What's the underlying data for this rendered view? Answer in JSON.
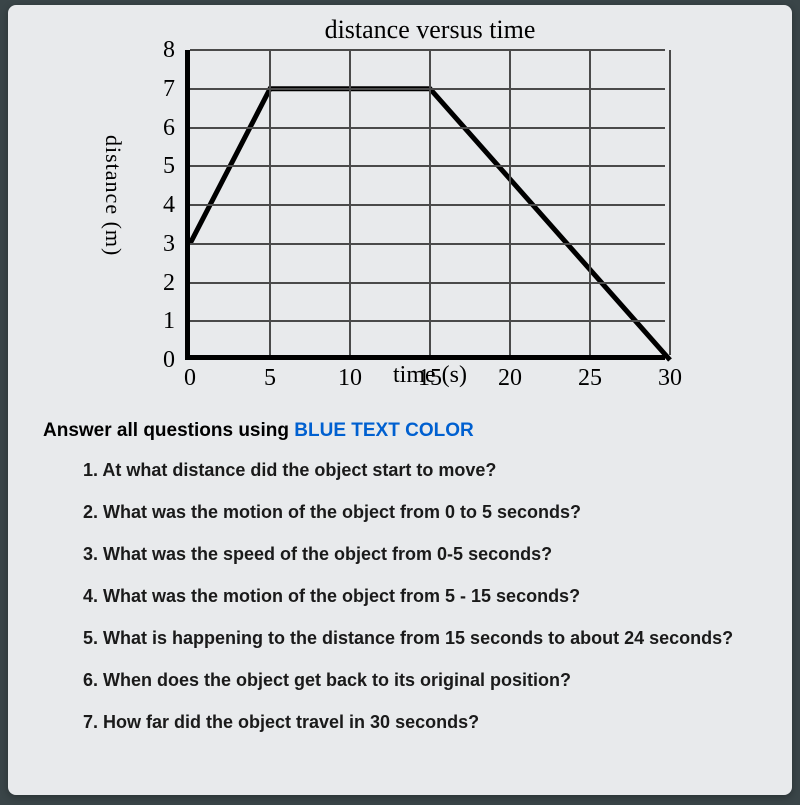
{
  "chart": {
    "title": "distance versus time",
    "xlabel": "time (s)",
    "ylabel": "distance (m)",
    "type": "line",
    "x_ticks": [
      0,
      5,
      10,
      15,
      20,
      25,
      30
    ],
    "y_ticks": [
      0,
      1,
      2,
      3,
      4,
      5,
      6,
      7,
      8
    ],
    "xlim": [
      0,
      30
    ],
    "ylim": [
      0,
      8
    ],
    "grid_color": "#4a4a4a",
    "axis_color": "#000000",
    "line_color": "#000000",
    "line_width": 5,
    "background_color": "#e8eaec",
    "data_points": [
      {
        "x": 0,
        "y": 3
      },
      {
        "x": 5,
        "y": 7
      },
      {
        "x": 15,
        "y": 7
      },
      {
        "x": 30,
        "y": 0
      }
    ]
  },
  "instruction_prefix": "Answer all questions using ",
  "instruction_highlight": "BLUE TEXT COLOR",
  "questions": [
    "1.  At what distance did the object start to move?",
    "2.  What was the motion of the object from 0 to 5 seconds?",
    "3.  What was the speed of the object from 0-5 seconds?",
    "4.  What was the motion of the object from 5 - 15 seconds?",
    "5.  What is happening to the distance from 15 seconds to about 24 seconds?",
    "6.  When does the object get back to its original position?",
    "7.  How far did the object travel in 30 seconds?"
  ]
}
